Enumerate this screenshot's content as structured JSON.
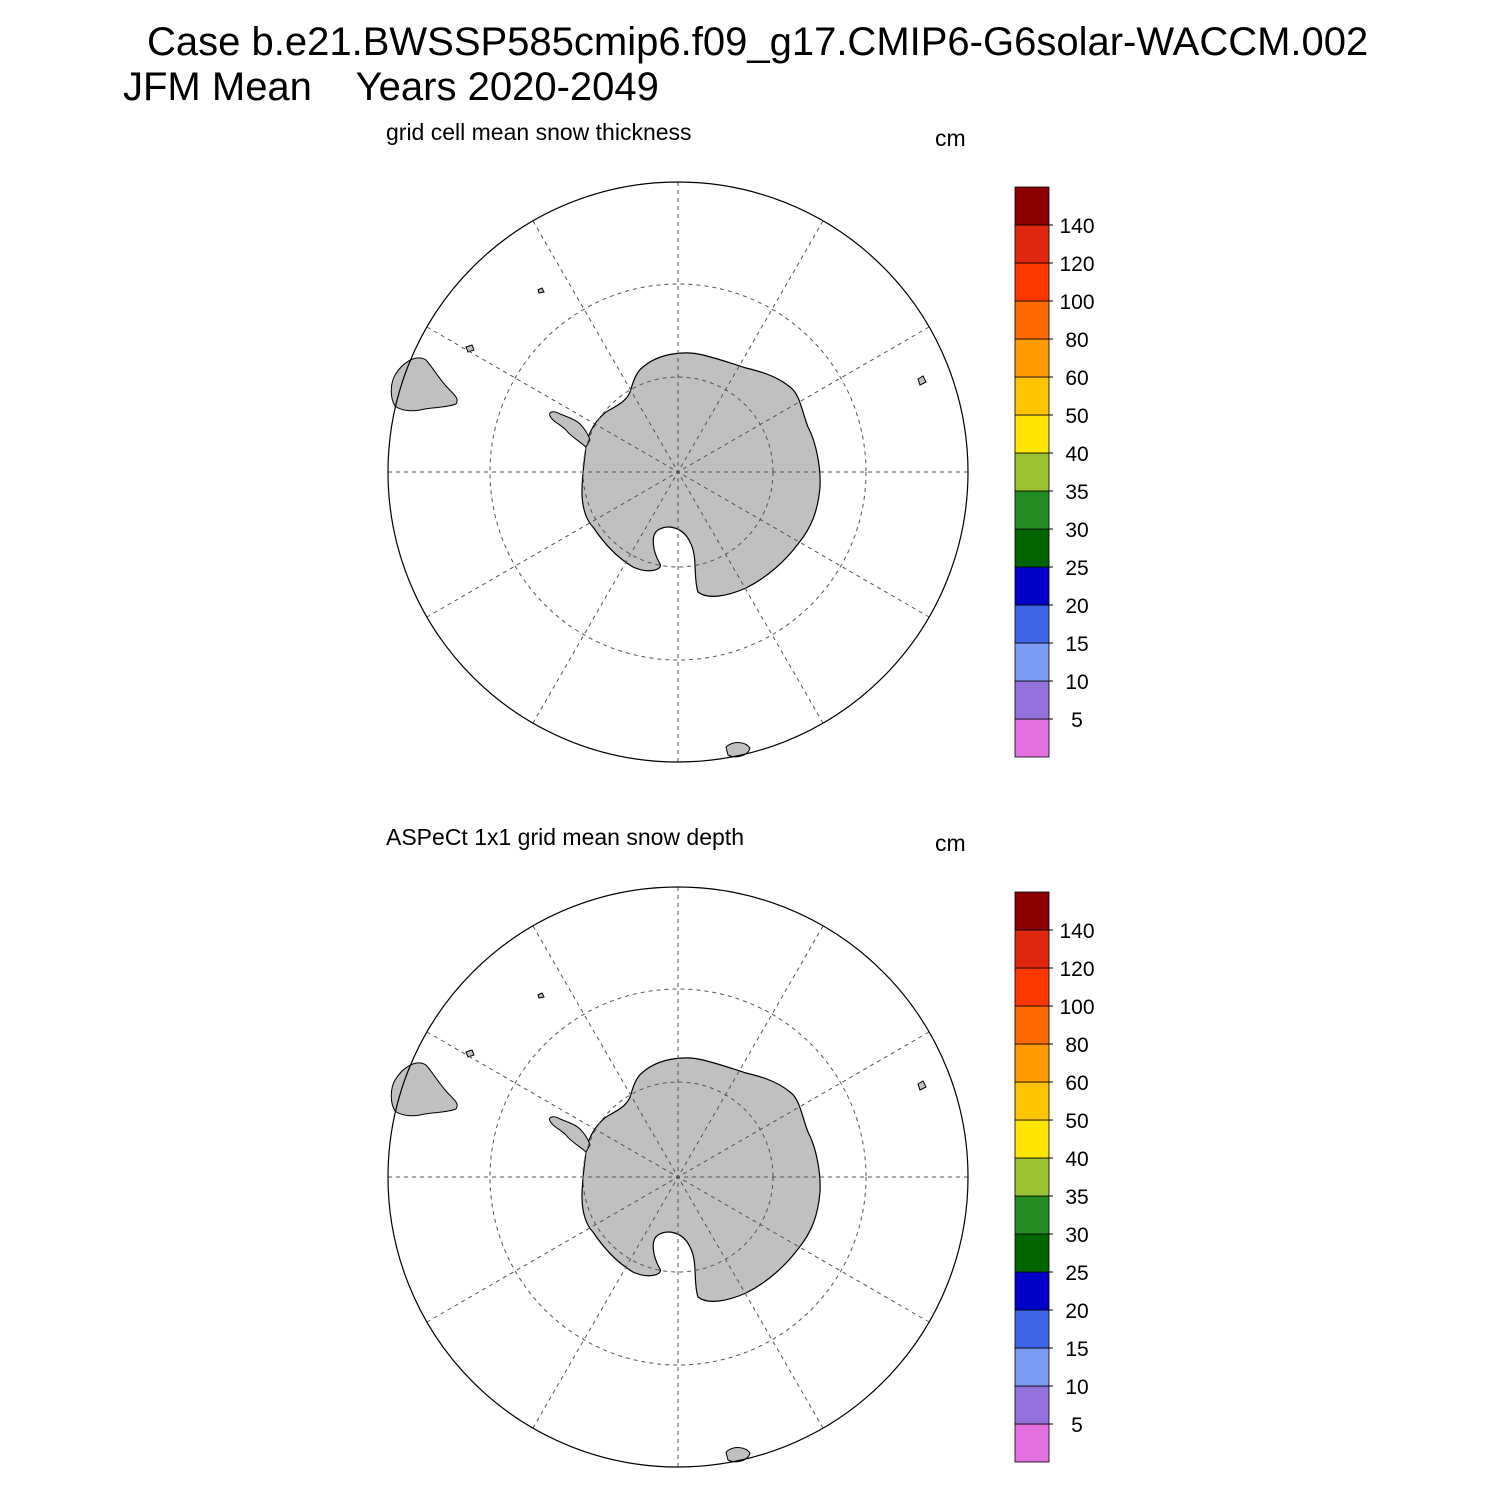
{
  "title": {
    "line1": "Case b.e21.BWSSP585cmip6.f09_g17.CMIP6-G6solar-WACCM.002",
    "line2": "JFM Mean    Years 2020-2049"
  },
  "panels": [
    {
      "id": "model",
      "subtitle": "grid cell mean snow thickness",
      "units": "cm",
      "colorbar": {
        "colors": [
          "#e271df",
          "#9370dc",
          "#7b9cf2",
          "#3e64e6",
          "#0000c8",
          "#006400",
          "#228b22",
          "#9ac230",
          "#ffe400",
          "#ffc400",
          "#ff9b00",
          "#ff6a00",
          "#ff3700",
          "#e0280e",
          "#8b0000"
        ],
        "labels": [
          "5",
          "10",
          "15",
          "20",
          "25",
          "30",
          "35",
          "40",
          "50",
          "60",
          "80",
          "100",
          "120",
          "140"
        ]
      }
    },
    {
      "id": "obs",
      "subtitle": "ASPeCt 1x1 grid mean snow depth",
      "units": "cm",
      "colorbar": {
        "colors": [
          "#e271df",
          "#9370dc",
          "#7b9cf2",
          "#3e64e6",
          "#0000c8",
          "#006400",
          "#228b22",
          "#9ac230",
          "#ffe400",
          "#ffc400",
          "#ff9b00",
          "#ff6a00",
          "#ff3700",
          "#e0280e",
          "#8b0000"
        ],
        "labels": [
          "5",
          "10",
          "15",
          "20",
          "25",
          "30",
          "35",
          "40",
          "50",
          "60",
          "80",
          "100",
          "120",
          "140"
        ]
      }
    }
  ],
  "colors": {
    "land": "#c0c0c0",
    "background": "#ffffff",
    "outline": "#000000",
    "grid": "#555555"
  }
}
